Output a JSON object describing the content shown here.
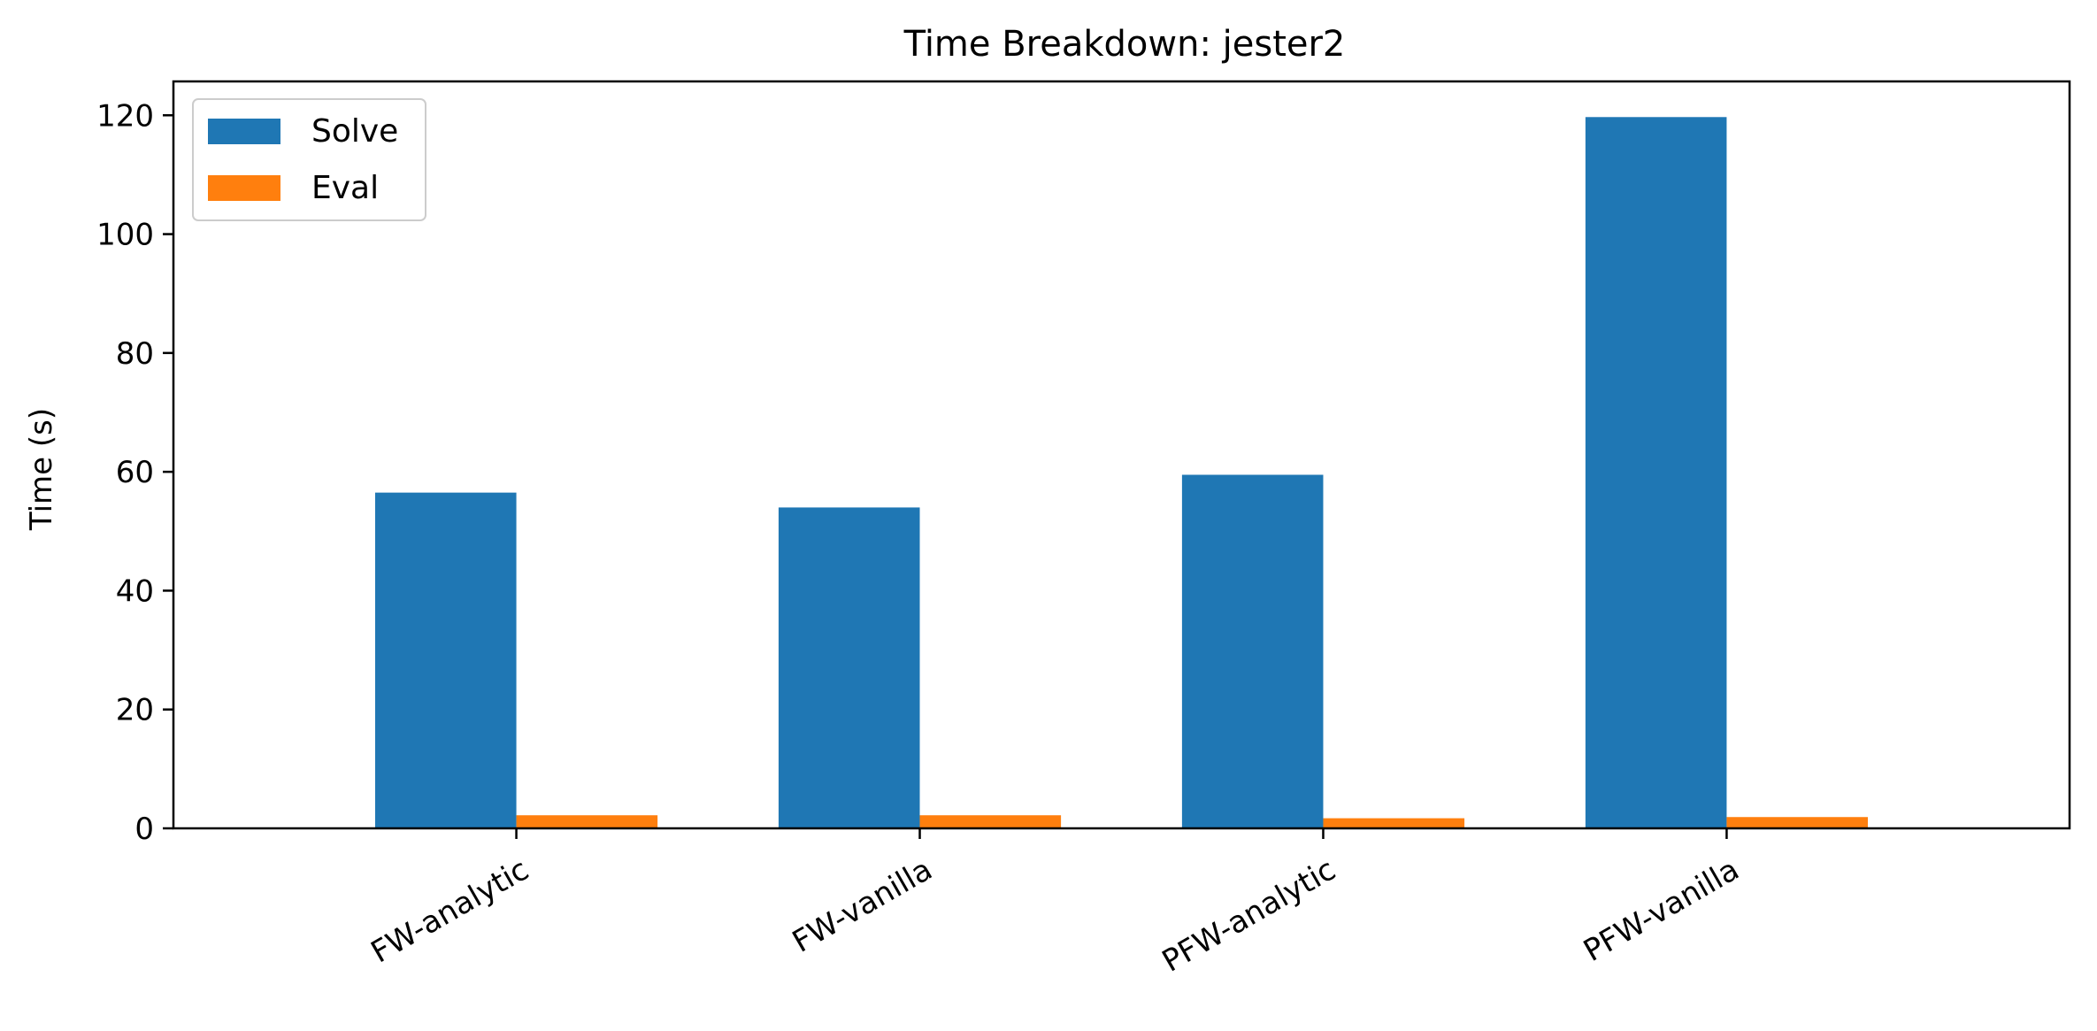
{
  "chart_data": {
    "type": "bar",
    "title": "Time Breakdown: jester2",
    "xlabel": "",
    "ylabel": "Time (s)",
    "categories": [
      "FW-analytic",
      "FW-vanilla",
      "PFW-analytic",
      "PFW-vanilla"
    ],
    "series": [
      {
        "name": "Solve",
        "color": "#1f77b4",
        "values": [
          56.5,
          54.0,
          59.5,
          119.7
        ]
      },
      {
        "name": "Eval",
        "color": "#ff7f0e",
        "values": [
          2.2,
          2.2,
          1.7,
          1.9
        ]
      }
    ],
    "ylim": [
      0,
      125.7
    ],
    "yticks": [
      0,
      20,
      40,
      60,
      80,
      100,
      120
    ],
    "grid": false,
    "legend": "top-left"
  }
}
